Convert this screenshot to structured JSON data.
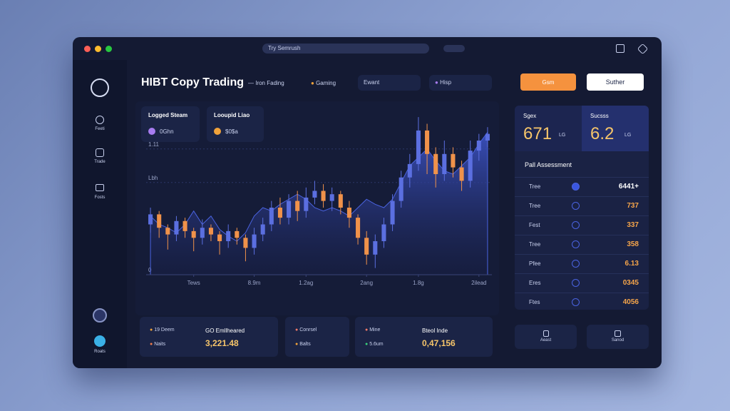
{
  "browser": {
    "url": "Try Semrush"
  },
  "sidebar": {
    "items": [
      "Feeti",
      "Trade",
      "Fosts",
      "Roats"
    ]
  },
  "header": {
    "title": "HIBT Copy Trading",
    "subtitle": "— Iron Fading",
    "tabs": [
      "Gaming",
      "Ewant",
      "Hisp"
    ],
    "buttons": [
      "Gsm",
      "Suther"
    ]
  },
  "chart": {
    "selectors": [
      {
        "title": "Logged Steam",
        "value": "0Ghn"
      },
      {
        "title": "Looupid Liao",
        "value": "$0$a"
      }
    ]
  },
  "chart_data": {
    "type": "candlestick",
    "ylim": [
      0,
      100
    ],
    "yticks": [
      0,
      {
        "value": 55,
        "label": "Lbh"
      },
      {
        "value": 75,
        "label": "1.11"
      }
    ],
    "xlim": [
      0,
      40
    ],
    "xticks": [
      {
        "value": 5,
        "label": "Tews"
      },
      {
        "value": 12,
        "label": "8.9m"
      },
      {
        "value": 18,
        "label": "1.2ag"
      },
      {
        "value": 25,
        "label": "2ang"
      },
      {
        "value": 31,
        "label": "1.8g"
      },
      {
        "value": 38,
        "label": "2ilead"
      }
    ],
    "grid": true,
    "up_color": "#5b6fe0",
    "down_color": "#f0924a",
    "area_color": "#4a63e0",
    "area": [
      35,
      30,
      28,
      25,
      30,
      38,
      30,
      35,
      27,
      23,
      20,
      25,
      35,
      40,
      38,
      42,
      45,
      48,
      45,
      40,
      38,
      40,
      38,
      35,
      40,
      45,
      42,
      40,
      45,
      55,
      65,
      70,
      75,
      68,
      62,
      60,
      65,
      70,
      78,
      85
    ],
    "open": [
      30,
      36,
      28,
      24,
      32,
      26,
      22,
      28,
      24,
      20,
      26,
      22,
      16,
      24,
      30,
      40,
      34,
      44,
      38,
      46,
      50,
      44,
      48,
      40,
      34,
      22,
      12,
      20,
      30,
      44,
      58,
      66,
      86,
      72,
      60,
      72,
      64,
      56,
      74,
      80
    ],
    "close": [
      36,
      28,
      24,
      32,
      26,
      22,
      28,
      24,
      20,
      26,
      22,
      16,
      24,
      30,
      40,
      34,
      44,
      38,
      46,
      50,
      44,
      48,
      40,
      34,
      22,
      12,
      20,
      30,
      44,
      58,
      66,
      86,
      72,
      60,
      72,
      64,
      56,
      74,
      80,
      84
    ],
    "high": [
      40,
      38,
      30,
      35,
      34,
      28,
      33,
      30,
      26,
      30,
      28,
      24,
      28,
      34,
      44,
      46,
      48,
      50,
      52,
      56,
      54,
      52,
      50,
      44,
      36,
      26,
      24,
      34,
      48,
      62,
      72,
      94,
      90,
      76,
      80,
      76,
      68,
      80,
      84,
      88
    ],
    "low": [
      25,
      22,
      15,
      20,
      22,
      14,
      18,
      20,
      12,
      16,
      18,
      8,
      12,
      20,
      26,
      30,
      30,
      32,
      34,
      42,
      40,
      38,
      36,
      28,
      18,
      6,
      4,
      16,
      26,
      40,
      52,
      62,
      60,
      52,
      56,
      58,
      50,
      52,
      68,
      76
    ]
  },
  "stats": [
    {
      "label": "Sgex",
      "value": "671",
      "unit": "LG"
    },
    {
      "label": "Sucsss",
      "value": "6.2",
      "unit": "LG"
    }
  ],
  "assessment": {
    "title": "Pall Assessment",
    "rows": [
      [
        "Tree",
        "6441+"
      ],
      [
        "Tree",
        "737"
      ],
      [
        "Fest",
        "337"
      ],
      [
        "Tree",
        "358"
      ],
      [
        "Pfee",
        "6.13"
      ],
      [
        "Eres",
        "0345"
      ],
      [
        "Ftes",
        "4056"
      ]
    ]
  },
  "summary": [
    {
      "items": [
        "19 Deem",
        "Naits"
      ],
      "title": "GO Emllheared",
      "value": "3,221.48"
    },
    {
      "items": [
        "Conrsel",
        "Balts"
      ]
    },
    {
      "items": [
        "Mine",
        "5.6um"
      ],
      "title": "Bteol Inde",
      "value": "0,47,156"
    }
  ],
  "actions": [
    "Aeast",
    "Sanod"
  ]
}
